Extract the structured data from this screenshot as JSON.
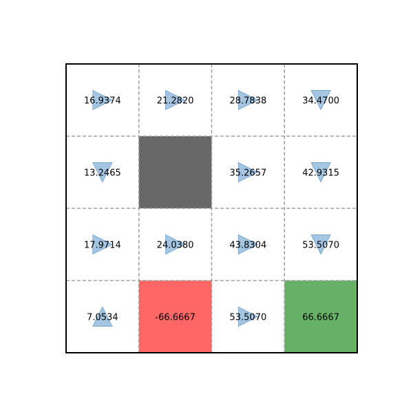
{
  "grid": {
    "rows": 4,
    "cols": 4,
    "colors": {
      "normal": "#ffffff",
      "wall": "#686868",
      "danger": "#ff6666",
      "goal": "#67b167",
      "arrow": "#9fc3e1",
      "arrow_edge": "#7aa9d2",
      "dashed_line": "#a0a0a0",
      "border": "#000000"
    },
    "cells": [
      {
        "row": 0,
        "col": 0,
        "type": "normal",
        "value": "16.9374",
        "action": "right"
      },
      {
        "row": 0,
        "col": 1,
        "type": "normal",
        "value": "21.2820",
        "action": "right"
      },
      {
        "row": 0,
        "col": 2,
        "type": "normal",
        "value": "28.7838",
        "action": "right"
      },
      {
        "row": 0,
        "col": 3,
        "type": "normal",
        "value": "34.4700",
        "action": "down"
      },
      {
        "row": 1,
        "col": 0,
        "type": "normal",
        "value": "13.2465",
        "action": "down"
      },
      {
        "row": 1,
        "col": 1,
        "type": "wall",
        "value": "",
        "action": ""
      },
      {
        "row": 1,
        "col": 2,
        "type": "normal",
        "value": "35.2657",
        "action": "right"
      },
      {
        "row": 1,
        "col": 3,
        "type": "normal",
        "value": "42.9315",
        "action": "down"
      },
      {
        "row": 2,
        "col": 0,
        "type": "normal",
        "value": "17.9714",
        "action": "right"
      },
      {
        "row": 2,
        "col": 1,
        "type": "normal",
        "value": "24.0380",
        "action": "right"
      },
      {
        "row": 2,
        "col": 2,
        "type": "normal",
        "value": "43.8304",
        "action": "right"
      },
      {
        "row": 2,
        "col": 3,
        "type": "normal",
        "value": "53.5070",
        "action": "down"
      },
      {
        "row": 3,
        "col": 0,
        "type": "normal",
        "value": "7.0534",
        "action": "up"
      },
      {
        "row": 3,
        "col": 1,
        "type": "danger",
        "value": "-66.6667",
        "action": ""
      },
      {
        "row": 3,
        "col": 2,
        "type": "normal",
        "value": "53.5070",
        "action": "right"
      },
      {
        "row": 3,
        "col": 3,
        "type": "goal",
        "value": "66.6667",
        "action": ""
      }
    ]
  }
}
